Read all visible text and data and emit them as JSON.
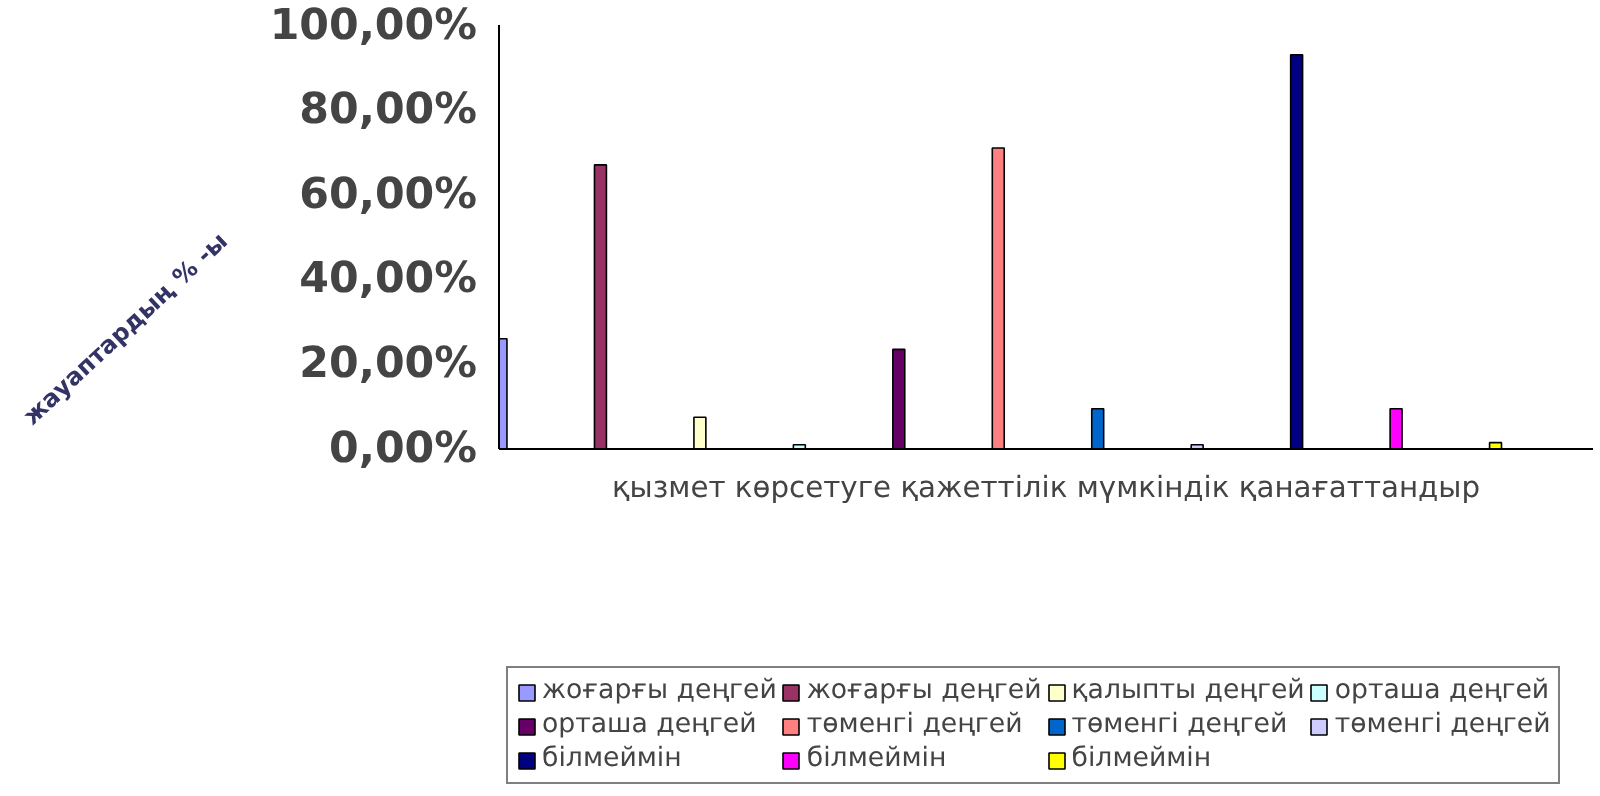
{
  "chart_data": {
    "type": "bar",
    "ylabel": "жауаптардың % -ы",
    "categories": [
      "қызмет көрсетуге қажеттілік мүмкіндік қанағаттандыр"
    ],
    "series": [
      {
        "name": "жоғарғы деңгей",
        "color": "#9999ff",
        "values": [
          26
        ]
      },
      {
        "name": "жоғарғы деңгей",
        "color": "#993366",
        "values": [
          67
        ]
      },
      {
        "name": "қалыпты деңгей",
        "color": "#ffffcc",
        "values": [
          7.5
        ]
      },
      {
        "name": "орташа деңгей",
        "color": "#ccffff",
        "values": [
          1
        ]
      },
      {
        "name": "орташа деңгей",
        "color": "#660066",
        "values": [
          23.5
        ]
      },
      {
        "name": "төменгі деңгей",
        "color": "#ff8080",
        "values": [
          71
        ]
      },
      {
        "name": "төменгі деңгей",
        "color": "#0066cc",
        "values": [
          9.5
        ]
      },
      {
        "name": "төменгі деңгей",
        "color": "#ccccff",
        "values": [
          1
        ]
      },
      {
        "name": "білмеймін",
        "color": "#000080",
        "values": [
          93
        ]
      },
      {
        "name": "білмеймін",
        "color": "#ff00ff",
        "values": [
          9.5
        ]
      },
      {
        "name": "білмеймін",
        "color": "#ffff00",
        "values": [
          1.5
        ]
      }
    ],
    "ylim": [
      0,
      100
    ],
    "yticks": [
      {
        "value": 0,
        "label": "0,00%"
      },
      {
        "value": 20,
        "label": "20,00%"
      },
      {
        "value": 40,
        "label": "40,00%"
      },
      {
        "value": 60,
        "label": "60,00%"
      },
      {
        "value": 80,
        "label": "80,00%"
      },
      {
        "value": 100,
        "label": "100,00%"
      }
    ],
    "grid": false,
    "legend": "bottom"
  }
}
